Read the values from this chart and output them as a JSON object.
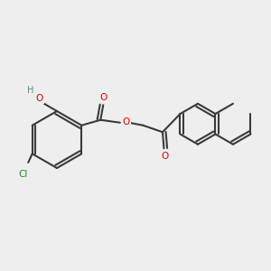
{
  "bg_color": "#eeeeee",
  "bond_color": "#3a3a3a",
  "bond_lw": 1.5,
  "atom_colors": {
    "O": "#e00000",
    "Cl": "#228b22",
    "H_gray": "#5a8a8a",
    "C": "#3a3a3a"
  },
  "font_size_atom": 7.5,
  "font_size_small": 6.5
}
